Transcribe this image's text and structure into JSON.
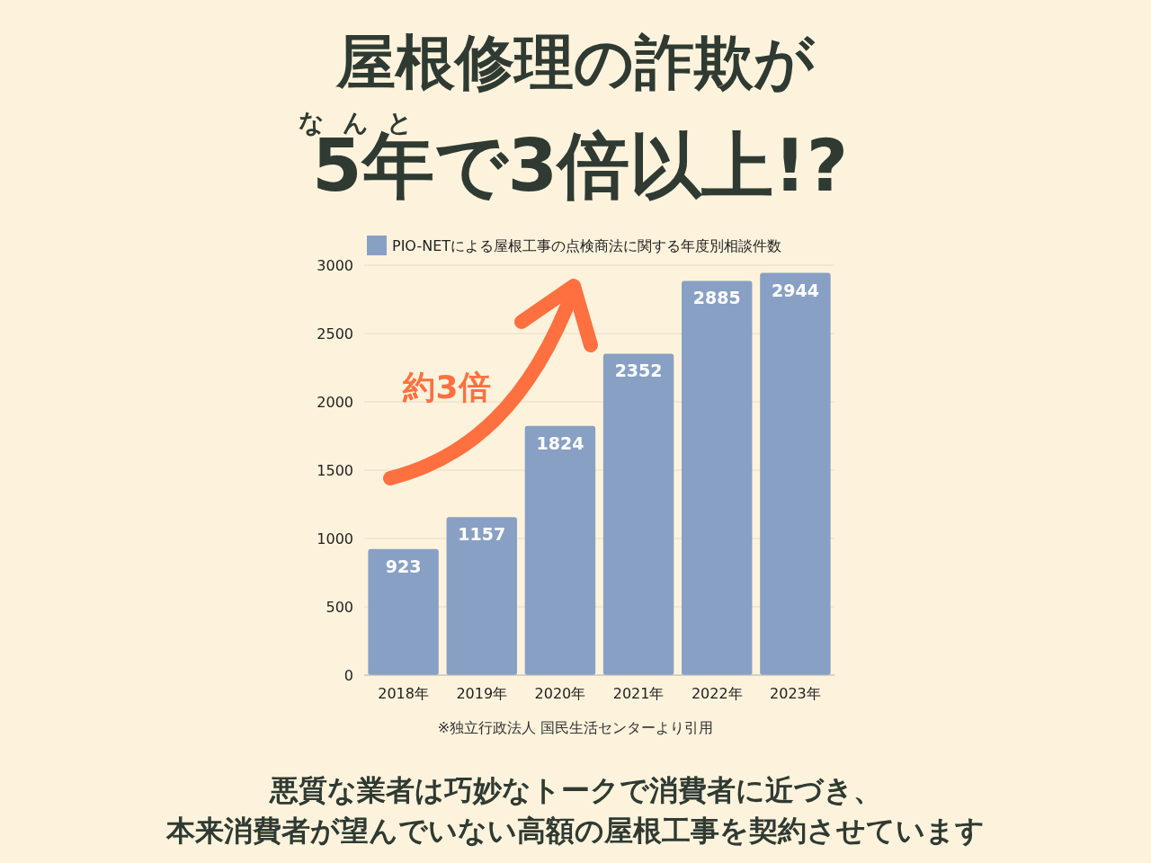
{
  "chart_data": {
    "type": "bar",
    "title": "屋根修理の詐欺が",
    "subtitle": "5年で3倍以上!?",
    "annotations": [
      "なんと",
      "約3倍",
      "※独立行政法人 国民生活センターより引用",
      "悪質な業者は巧妙なトークで消費者に近づき、",
      "本来消費者が望んでいない高額の屋根工事を契約させています"
    ],
    "categories": [
      "2018年",
      "2019年",
      "2020年",
      "2021年",
      "2022年",
      "2023年"
    ],
    "series": [
      {
        "name": "PIO-NETによる屋根工事の点検商法に関する年度別相談件数",
        "color": "#88a0c4",
        "values": [
          923,
          1157,
          1824,
          2352,
          2885,
          2944
        ]
      }
    ],
    "ylim": [
      0,
      3000
    ],
    "yticks": [
      0,
      500,
      1000,
      1500,
      2000,
      2500,
      3000
    ],
    "grid": "y",
    "legend": "top",
    "data_labels": true
  }
}
